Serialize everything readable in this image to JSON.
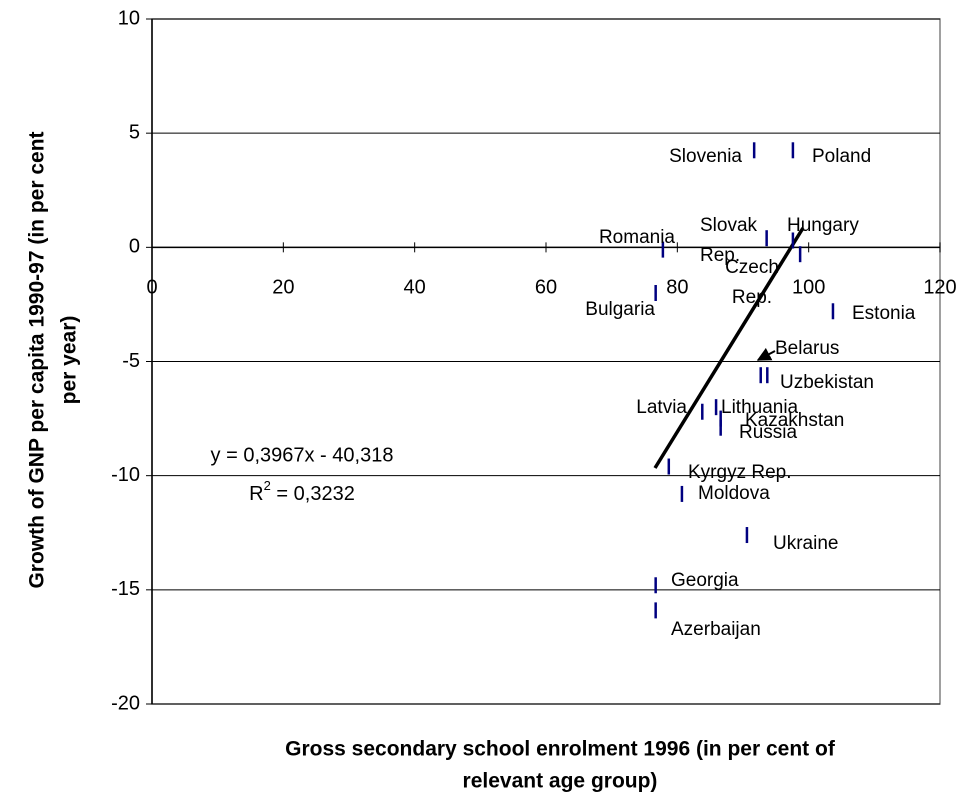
{
  "chart_data": {
    "type": "scatter",
    "xlabel": [
      "Gross secondary school enrolment 1996 (in per cent of",
      "relevant age group)"
    ],
    "ylabel": [
      "Growth of GNP per capita 1990-97 (in per cent",
      "per year)"
    ],
    "labels": [
      [
        "Slovenia"
      ],
      [
        "Poland"
      ],
      [
        "Romania"
      ],
      [
        "Slovak",
        "Rep."
      ],
      [
        "Hungary"
      ],
      [
        "Czech",
        "Rep."
      ],
      [
        "Bulgaria"
      ],
      [
        "Estonia"
      ],
      [
        "Belarus"
      ],
      [
        "Uzbekistan"
      ],
      [
        "Latvia"
      ],
      [
        "Lithuania"
      ],
      [
        "Kazakhstan"
      ],
      [
        "Russia"
      ],
      [
        "Kyrgyz Rep."
      ],
      [
        "Moldova"
      ],
      [
        "Ukraine"
      ],
      [
        "Georgia"
      ],
      [
        "Azerbaijan"
      ]
    ],
    "x": [
      91.7,
      97.6,
      77.8,
      93.6,
      97.6,
      98.7,
      76.7,
      103.7,
      92.7,
      93.7,
      83.8,
      85.9,
      86.6,
      86.6,
      78.7,
      80.7,
      90.6,
      76.7,
      76.7
    ],
    "values": [
      4.25,
      4.25,
      -0.1,
      0.4,
      0.3,
      -0.3,
      -2.0,
      -2.8,
      -5.6,
      -5.6,
      -7.2,
      -7.0,
      -7.5,
      -7.9,
      -9.6,
      -10.8,
      -12.6,
      -14.8,
      -15.9
    ],
    "color": "#000080",
    "xlim": [
      0,
      120
    ],
    "xticks": [
      0,
      20,
      40,
      60,
      80,
      100,
      120
    ],
    "ylim": [
      -20,
      10
    ],
    "yticks": [
      -20,
      -15,
      -10,
      -5,
      0,
      5,
      10
    ],
    "grid": true,
    "equation": "y = 0,3967x - 40,318",
    "r2": {
      "symbol": "R",
      "exponent": "2",
      "text": " = 0,3232"
    }
  }
}
